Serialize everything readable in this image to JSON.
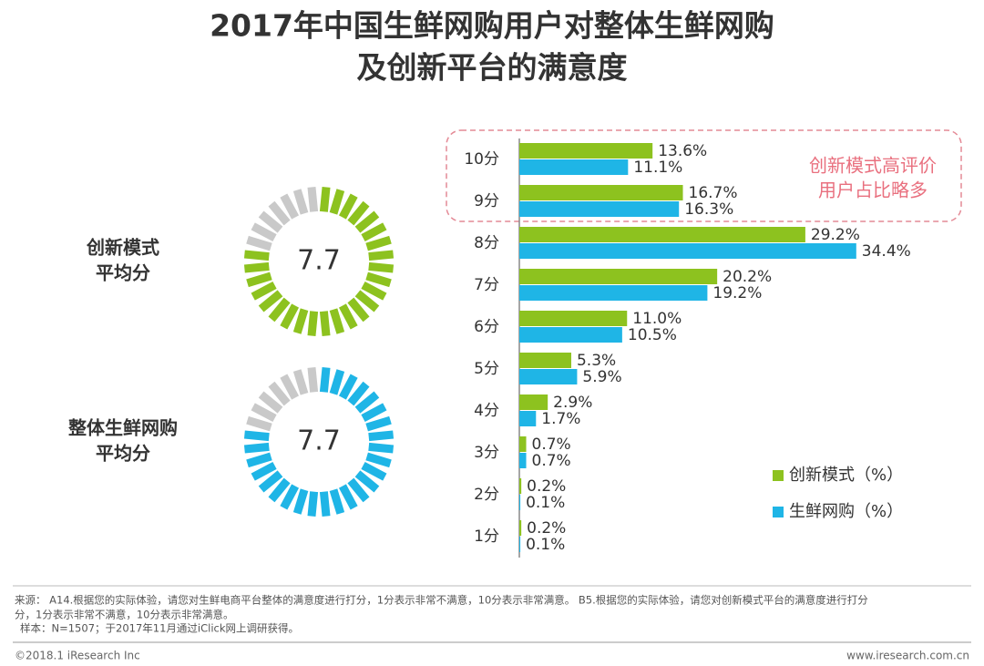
{
  "title": [
    "2017年中国生鲜网购用户对整体生鲜网购",
    "及创新平台的满意度"
  ],
  "chart_data": [
    {
      "type": "gauge",
      "label": [
        "创新模式",
        "平均分"
      ],
      "value": 7.7,
      "range": [
        0,
        10
      ],
      "color": "#8dc21f"
    },
    {
      "type": "gauge",
      "label": [
        "整体生鲜网购",
        "平均分"
      ],
      "value": 7.7,
      "range": [
        0,
        10
      ],
      "color": "#1fb5e6"
    },
    {
      "type": "hbar",
      "categories": [
        "10分",
        "9分",
        "8分",
        "7分",
        "6分",
        "5分",
        "4分",
        "3分",
        "2分",
        "1分"
      ],
      "series": [
        {
          "name": "创新模式（%）",
          "color": "#8dc21f",
          "values": [
            13.6,
            16.7,
            29.2,
            20.2,
            11.0,
            5.3,
            2.9,
            0.7,
            0.2,
            0.2
          ],
          "value_labels": [
            "13.6%",
            "16.7%",
            "29.2%",
            "20.2%",
            "11.0%",
            "5.3%",
            "2.9%",
            "0.7%",
            "0.2%",
            "0.2%"
          ]
        },
        {
          "name": "生鲜网购（%）",
          "color": "#1fb5e6",
          "values": [
            11.1,
            16.3,
            34.4,
            19.2,
            10.5,
            5.9,
            1.7,
            0.7,
            0.1,
            0.1
          ],
          "value_labels": [
            "11.1%",
            "16.3%",
            "34.4%",
            "19.2%",
            "10.5%",
            "5.9%",
            "1.7%",
            "0.7%",
            "0.1%",
            "0.1%"
          ]
        }
      ],
      "xlim": [
        0,
        40
      ],
      "annotation": [
        "创新模式高评价",
        "用户占比略多"
      ]
    }
  ],
  "footer": {
    "source": [
      "来源： A14.根据您的实际体验，请您对生鲜电商平台整体的满意度进行打分，1分表示非常不满意，10分表示非常满意。 B5.根据您的实际体验，请您对创新模式平台的满意度进行打分",
      "分，1分表示非常不满意，10分表示非常满意。",
      "样本：N=1507；于2017年11月通过iClick网上调研获得。"
    ],
    "copyright": "©2018.1 iResearch Inc",
    "website": "www.iresearch.com.cn"
  }
}
